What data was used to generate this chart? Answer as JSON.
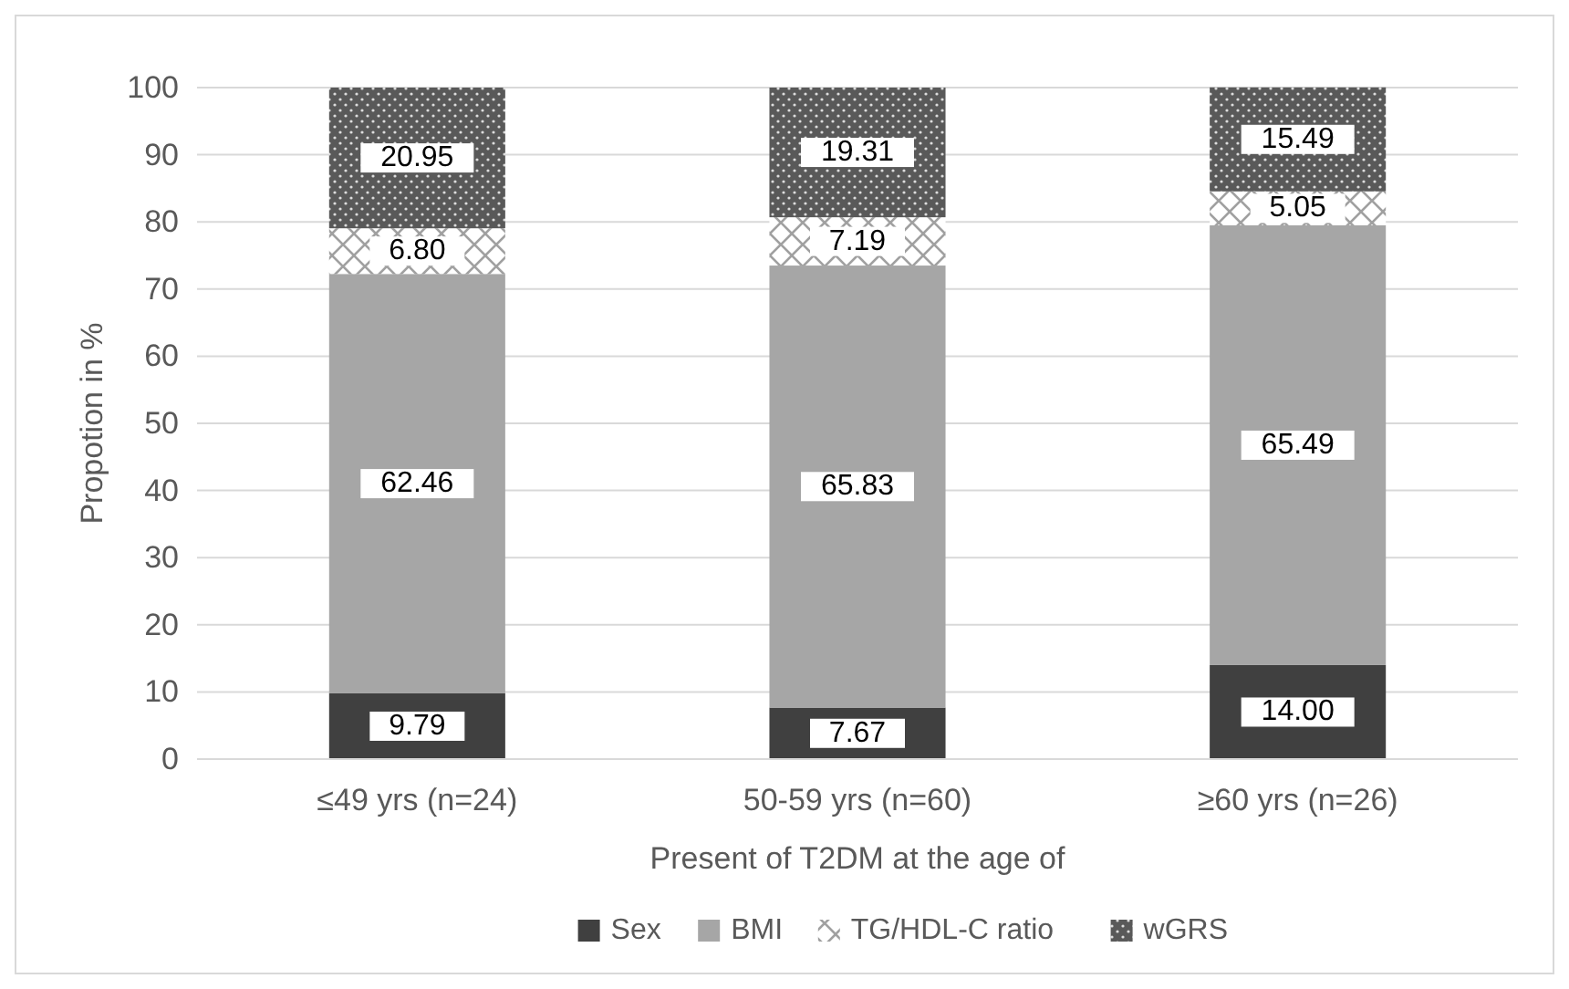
{
  "chart_data": {
    "type": "bar",
    "stacked": true,
    "xlabel": "Present of T2DM at the age of",
    "ylabel": "Propotion in %",
    "categories": [
      "≤49 yrs (n=24)",
      "50-59 yrs (n=60)",
      "≥60 yrs (n=26)"
    ],
    "series": [
      {
        "name": "Sex",
        "color": "#404040",
        "values": [
          9.79,
          7.67,
          14.0
        ],
        "value_labels": [
          "9.79",
          "7.67",
          "14.00"
        ]
      },
      {
        "name": "BMI",
        "color": "#a6a6a6",
        "values": [
          62.46,
          65.83,
          65.49
        ],
        "value_labels": [
          "62.46",
          "65.83",
          "65.49"
        ]
      },
      {
        "name": "TG/HDL-C ratio",
        "color": "#a0a0a0",
        "values": [
          6.8,
          7.19,
          5.05
        ],
        "value_labels": [
          "6.80",
          "7.19",
          "5.05"
        ]
      },
      {
        "name": "wGRS",
        "color": "#595959",
        "values": [
          20.95,
          19.31,
          15.49
        ],
        "value_labels": [
          "20.95",
          "19.31",
          "15.49"
        ]
      }
    ],
    "ylim": [
      0,
      100
    ],
    "yticks": [
      0,
      10,
      20,
      30,
      40,
      50,
      60,
      70,
      80,
      90,
      100
    ],
    "grid": "y",
    "legend": "bottom"
  }
}
